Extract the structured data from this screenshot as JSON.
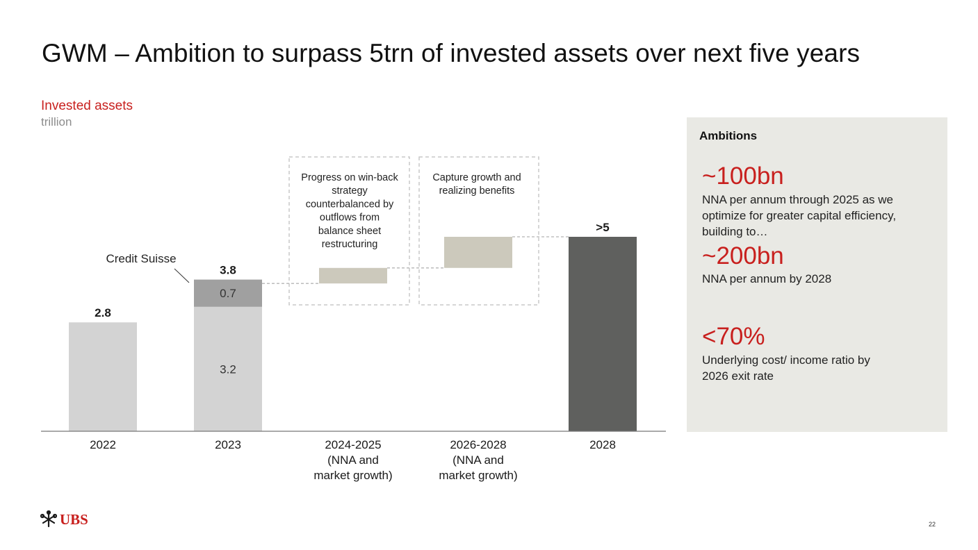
{
  "slide": {
    "title": "GWM – Ambition to surpass 5trn of invested assets over next five years",
    "page_number": "22",
    "logo_text": "UBS"
  },
  "chart_data": {
    "type": "bar",
    "subtitle": "Invested assets",
    "unit": "trillion",
    "categories": [
      "2022",
      "2023",
      "2024-2025 (NNA and market growth)",
      "2026-2028 (NNA and market growth)",
      "2028"
    ],
    "category_label_lines": [
      [
        "2022"
      ],
      [
        "2023"
      ],
      [
        "2024-2025",
        "(NNA and",
        "market growth)"
      ],
      [
        "2026-2028",
        "(NNA and",
        "market growth)"
      ],
      [
        "2028"
      ]
    ],
    "bars": [
      {
        "category": "2022",
        "kind": "total",
        "value": 2.8,
        "label": "2.8"
      },
      {
        "category": "2023",
        "kind": "stacked",
        "segments": [
          {
            "name": "UBS",
            "value": 3.2,
            "label": "3.2"
          },
          {
            "name": "Credit Suisse",
            "value": 0.7,
            "label": "0.7"
          }
        ],
        "total_label": "3.8"
      },
      {
        "category": "2024-2025",
        "kind": "increment",
        "from": 3.8,
        "to": 4.2
      },
      {
        "category": "2026-2028",
        "kind": "increment",
        "from": 4.2,
        "to": 5.0
      },
      {
        "category": "2028",
        "kind": "total",
        "value": 5.0,
        "label": ">5"
      }
    ],
    "annotations": [
      {
        "text": "Credit Suisse"
      },
      {
        "category": "2024-2025",
        "text_lines": [
          "Progress on win-back",
          "strategy",
          "counterbalanced by",
          "outflows from",
          "balance sheet",
          "restructuring"
        ]
      },
      {
        "category": "2026-2028",
        "text_lines": [
          "Capture growth and",
          "realizing benefits"
        ]
      }
    ],
    "ylim": [
      0,
      5.0
    ],
    "grid": false,
    "colors": {
      "light": "#d3d3d3",
      "medium": "#a0a0a0",
      "dark": "#5f605e",
      "increment": "#ccc9bc",
      "dashed": "#c8c8c8",
      "axis": "#777777",
      "accent": "#c8201e"
    }
  },
  "ambitions": {
    "heading": "Ambitions",
    "items": [
      {
        "value": "~100bn",
        "description": "NNA per annum through 2025 as we optimize for greater capital efficiency, building to…"
      },
      {
        "value": "~200bn",
        "description": "NNA per annum by 2028"
      },
      {
        "value": "<70%",
        "description": "Underlying cost/ income ratio by 2026 exit rate"
      }
    ]
  }
}
